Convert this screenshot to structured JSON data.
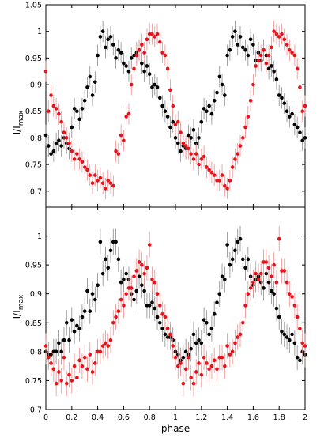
{
  "colors": {
    "series_a": "#000000",
    "series_b": "#e8121b",
    "error_a": "#8a8a8a",
    "error_b": "#f08c8c",
    "frame": "#000000"
  },
  "chart_data": [
    {
      "type": "scatter",
      "panel": "top",
      "ylabel_main": "I/I",
      "ylabel_sub": "max",
      "xlabel": "",
      "xlim": [
        0,
        2
      ],
      "ylim": [
        0.67,
        1.05
      ],
      "yticks": [
        "0.7",
        "0.75",
        "0.8",
        "0.85",
        "0.9",
        "0.95",
        "1",
        "1.05"
      ],
      "grid": false,
      "series": [
        {
          "color": "black",
          "x": [
            0.0,
            0.02,
            0.04,
            0.06,
            0.08,
            0.1,
            0.12,
            0.14,
            0.16,
            0.18,
            0.2,
            0.22,
            0.24,
            0.26,
            0.28,
            0.3,
            0.32,
            0.34,
            0.36,
            0.38,
            0.4,
            0.42,
            0.44,
            0.46,
            0.48,
            0.5,
            0.52,
            0.54,
            0.56,
            0.58,
            0.6,
            0.62,
            0.64,
            0.66,
            0.68,
            0.7,
            0.72,
            0.74,
            0.76,
            0.78,
            0.8,
            0.82,
            0.84,
            0.86,
            0.88,
            0.9,
            0.92,
            0.94,
            0.96,
            0.98,
            1.0,
            1.02,
            1.04,
            1.06,
            1.08,
            1.1,
            1.12,
            1.14,
            1.16,
            1.18,
            1.2,
            1.22,
            1.24,
            1.26,
            1.28,
            1.3,
            1.32,
            1.34,
            1.36,
            1.38,
            1.4,
            1.42,
            1.44,
            1.46,
            1.48,
            1.5,
            1.52,
            1.54,
            1.56,
            1.58,
            1.6,
            1.62,
            1.64,
            1.66,
            1.68,
            1.7,
            1.72,
            1.74,
            1.76,
            1.78,
            1.8,
            1.82,
            1.84,
            1.86,
            1.88,
            1.9,
            1.92,
            1.94,
            1.96,
            1.98,
            2.0
          ],
          "y": [
            0.805,
            0.785,
            0.77,
            0.775,
            0.79,
            0.795,
            0.785,
            0.8,
            0.79,
            0.78,
            0.82,
            0.855,
            0.85,
            0.835,
            0.855,
            0.87,
            0.895,
            0.915,
            0.88,
            0.905,
            0.955,
            0.99,
            1.0,
            0.97,
            0.985,
            0.99,
            0.975,
            0.95,
            0.965,
            0.96,
            0.94,
            0.935,
            0.925,
            0.95,
            0.955,
            0.96,
            0.965,
            0.94,
            0.925,
            0.935,
            0.92,
            0.895,
            0.9,
            0.895,
            0.875,
            0.86,
            0.85,
            0.84,
            0.82,
            0.83,
            0.8,
            0.79,
            0.775,
            0.785,
            0.78,
            0.805,
            0.8,
            0.815,
            0.79,
            0.8,
            0.83,
            0.855,
            0.85,
            0.86,
            0.845,
            0.87,
            0.885,
            0.915,
            0.9,
            0.88,
            0.955,
            0.965,
            0.99,
            1.0,
            0.975,
            0.99,
            0.97,
            0.965,
            0.955,
            0.985,
            0.975,
            0.945,
            0.96,
            0.945,
            0.965,
            0.955,
            0.93,
            0.935,
            0.925,
            0.91,
            0.88,
            0.875,
            0.865,
            0.85,
            0.84,
            0.845,
            0.825,
            0.82,
            0.81,
            0.795,
            0.8
          ],
          "err": 0.02
        },
        {
          "color": "red",
          "x": [
            0.0,
            0.02,
            0.04,
            0.06,
            0.08,
            0.1,
            0.12,
            0.14,
            0.16,
            0.18,
            0.2,
            0.22,
            0.24,
            0.26,
            0.28,
            0.3,
            0.32,
            0.34,
            0.36,
            0.38,
            0.4,
            0.42,
            0.44,
            0.46,
            0.48,
            0.5,
            0.52,
            0.54,
            0.56,
            0.58,
            0.6,
            0.62,
            0.64,
            0.66,
            0.68,
            0.7,
            0.72,
            0.74,
            0.76,
            0.78,
            0.8,
            0.82,
            0.84,
            0.86,
            0.88,
            0.9,
            0.92,
            0.94,
            0.96,
            0.98,
            1.0,
            1.02,
            1.04,
            1.06,
            1.08,
            1.1,
            1.12,
            1.14,
            1.16,
            1.18,
            1.2,
            1.22,
            1.24,
            1.26,
            1.28,
            1.3,
            1.32,
            1.34,
            1.36,
            1.38,
            1.4,
            1.42,
            1.44,
            1.46,
            1.48,
            1.5,
            1.52,
            1.54,
            1.56,
            1.58,
            1.6,
            1.62,
            1.64,
            1.66,
            1.68,
            1.7,
            1.72,
            1.74,
            1.76,
            1.78,
            1.8,
            1.82,
            1.84,
            1.86,
            1.88,
            1.9,
            1.92,
            1.94,
            1.96,
            1.98,
            2.0
          ],
          "y": [
            0.925,
            0.85,
            0.88,
            0.86,
            0.855,
            0.845,
            0.83,
            0.81,
            0.8,
            0.79,
            0.775,
            0.76,
            0.77,
            0.76,
            0.755,
            0.745,
            0.74,
            0.73,
            0.715,
            0.73,
            0.72,
            0.725,
            0.715,
            0.705,
            0.72,
            0.715,
            0.71,
            0.775,
            0.77,
            0.805,
            0.795,
            0.84,
            0.845,
            0.9,
            0.93,
            0.955,
            0.965,
            0.975,
            0.96,
            0.985,
            0.995,
            0.995,
            0.99,
            0.995,
            0.98,
            0.96,
            0.955,
            0.93,
            0.89,
            0.86,
            0.825,
            0.83,
            0.81,
            0.79,
            0.785,
            0.78,
            0.77,
            0.76,
            0.77,
            0.75,
            0.76,
            0.765,
            0.745,
            0.74,
            0.735,
            0.73,
            0.72,
            0.72,
            0.73,
            0.71,
            0.705,
            0.72,
            0.745,
            0.76,
            0.77,
            0.785,
            0.8,
            0.82,
            0.84,
            0.87,
            0.9,
            0.935,
            0.945,
            0.955,
            0.965,
            0.94,
            0.955,
            0.97,
            1.0,
            0.995,
            0.99,
            0.995,
            0.985,
            0.975,
            0.965,
            0.96,
            0.955,
            0.93,
            0.895,
            0.85,
            0.86
          ],
          "err": 0.02
        }
      ]
    },
    {
      "type": "scatter",
      "panel": "bottom",
      "ylabel_main": "I/I",
      "ylabel_sub": "max",
      "xlabel": "phase",
      "xlim": [
        0,
        2
      ],
      "ylim": [
        0.7,
        1.05
      ],
      "yticks": [
        "0.7",
        "0.75",
        "0.8",
        "0.85",
        "0.9",
        "0.95",
        "1"
      ],
      "xticks": [
        "0",
        "0.2",
        "0.4",
        "0.6",
        "0.8",
        "1",
        "1.2",
        "1.4",
        "1.6",
        "1.8",
        "2"
      ],
      "grid": false,
      "series": [
        {
          "color": "black",
          "x": [
            0.0,
            0.02,
            0.04,
            0.06,
            0.08,
            0.1,
            0.12,
            0.14,
            0.16,
            0.18,
            0.2,
            0.22,
            0.24,
            0.26,
            0.28,
            0.3,
            0.32,
            0.34,
            0.36,
            0.38,
            0.4,
            0.42,
            0.44,
            0.46,
            0.48,
            0.5,
            0.52,
            0.54,
            0.56,
            0.58,
            0.6,
            0.62,
            0.64,
            0.66,
            0.68,
            0.7,
            0.72,
            0.74,
            0.76,
            0.78,
            0.8,
            0.82,
            0.84,
            0.86,
            0.88,
            0.9,
            0.92,
            0.94,
            0.96,
            0.98,
            1.0,
            1.02,
            1.04,
            1.06,
            1.08,
            1.1,
            1.12,
            1.14,
            1.16,
            1.18,
            1.2,
            1.22,
            1.24,
            1.26,
            1.28,
            1.3,
            1.32,
            1.34,
            1.36,
            1.38,
            1.4,
            1.42,
            1.44,
            1.46,
            1.48,
            1.5,
            1.52,
            1.54,
            1.56,
            1.58,
            1.6,
            1.62,
            1.64,
            1.66,
            1.68,
            1.7,
            1.72,
            1.74,
            1.76,
            1.78,
            1.8,
            1.82,
            1.84,
            1.86,
            1.88,
            1.9,
            1.92,
            1.94,
            1.96,
            1.98,
            2.0
          ],
          "y": [
            0.8,
            0.795,
            0.795,
            0.8,
            0.8,
            0.815,
            0.8,
            0.82,
            0.85,
            0.82,
            0.855,
            0.835,
            0.845,
            0.84,
            0.86,
            0.87,
            0.905,
            0.87,
            0.9,
            0.89,
            0.915,
            0.99,
            0.935,
            0.96,
            0.945,
            0.975,
            0.99,
            0.99,
            0.96,
            0.92,
            0.925,
            0.935,
            0.925,
            0.9,
            0.89,
            0.905,
            0.93,
            0.915,
            0.905,
            0.88,
            0.88,
            0.885,
            0.875,
            0.86,
            0.85,
            0.84,
            0.83,
            0.825,
            0.825,
            0.82,
            0.8,
            0.795,
            0.785,
            0.79,
            0.8,
            0.795,
            0.805,
            0.83,
            0.815,
            0.82,
            0.815,
            0.855,
            0.85,
            0.83,
            0.84,
            0.865,
            0.885,
            0.9,
            0.93,
            0.925,
            0.985,
            0.95,
            0.96,
            0.975,
            0.99,
            0.995,
            0.96,
            0.945,
            0.96,
            0.93,
            0.915,
            0.925,
            0.93,
            0.92,
            0.91,
            0.935,
            0.92,
            0.905,
            0.9,
            0.875,
            0.86,
            0.835,
            0.83,
            0.825,
            0.82,
            0.83,
            0.815,
            0.79,
            0.785,
            0.8,
            0.795
          ],
          "err": 0.022
        },
        {
          "color": "red",
          "x": [
            0.0,
            0.02,
            0.04,
            0.06,
            0.08,
            0.1,
            0.12,
            0.14,
            0.16,
            0.18,
            0.2,
            0.22,
            0.24,
            0.26,
            0.28,
            0.3,
            0.32,
            0.34,
            0.36,
            0.38,
            0.4,
            0.42,
            0.44,
            0.46,
            0.48,
            0.5,
            0.52,
            0.54,
            0.56,
            0.58,
            0.6,
            0.62,
            0.64,
            0.66,
            0.68,
            0.7,
            0.72,
            0.74,
            0.76,
            0.78,
            0.8,
            0.82,
            0.84,
            0.86,
            0.88,
            0.9,
            0.92,
            0.94,
            0.96,
            0.98,
            1.0,
            1.02,
            1.04,
            1.06,
            1.08,
            1.1,
            1.12,
            1.14,
            1.16,
            1.18,
            1.2,
            1.22,
            1.24,
            1.26,
            1.28,
            1.3,
            1.32,
            1.34,
            1.36,
            1.38,
            1.4,
            1.42,
            1.44,
            1.46,
            1.48,
            1.5,
            1.52,
            1.54,
            1.56,
            1.58,
            1.6,
            1.62,
            1.64,
            1.66,
            1.68,
            1.7,
            1.72,
            1.74,
            1.76,
            1.78,
            1.8,
            1.82,
            1.84,
            1.86,
            1.88,
            1.9,
            1.92,
            1.94,
            1.96,
            1.98,
            2.0
          ],
          "y": [
            0.81,
            0.79,
            0.78,
            0.77,
            0.745,
            0.765,
            0.75,
            0.79,
            0.745,
            0.76,
            0.75,
            0.775,
            0.755,
            0.785,
            0.775,
            0.79,
            0.77,
            0.795,
            0.765,
            0.78,
            0.8,
            0.8,
            0.81,
            0.815,
            0.81,
            0.82,
            0.85,
            0.86,
            0.87,
            0.89,
            0.88,
            0.9,
            0.91,
            0.91,
            0.93,
            0.94,
            0.955,
            0.95,
            0.935,
            0.945,
            0.985,
            0.925,
            0.92,
            0.9,
            0.88,
            0.865,
            0.86,
            0.84,
            0.83,
            0.81,
            0.79,
            0.775,
            0.78,
            0.745,
            0.77,
            0.79,
            0.755,
            0.745,
            0.765,
            0.78,
            0.76,
            0.79,
            0.78,
            0.77,
            0.775,
            0.785,
            0.77,
            0.79,
            0.79,
            0.775,
            0.81,
            0.795,
            0.8,
            0.815,
            0.825,
            0.83,
            0.85,
            0.88,
            0.9,
            0.91,
            0.92,
            0.935,
            0.925,
            0.935,
            0.955,
            0.955,
            0.945,
            0.93,
            0.95,
            0.92,
            0.995,
            0.94,
            0.94,
            0.92,
            0.9,
            0.895,
            0.88,
            0.86,
            0.84,
            0.815,
            0.81
          ],
          "err": 0.022
        }
      ]
    }
  ]
}
